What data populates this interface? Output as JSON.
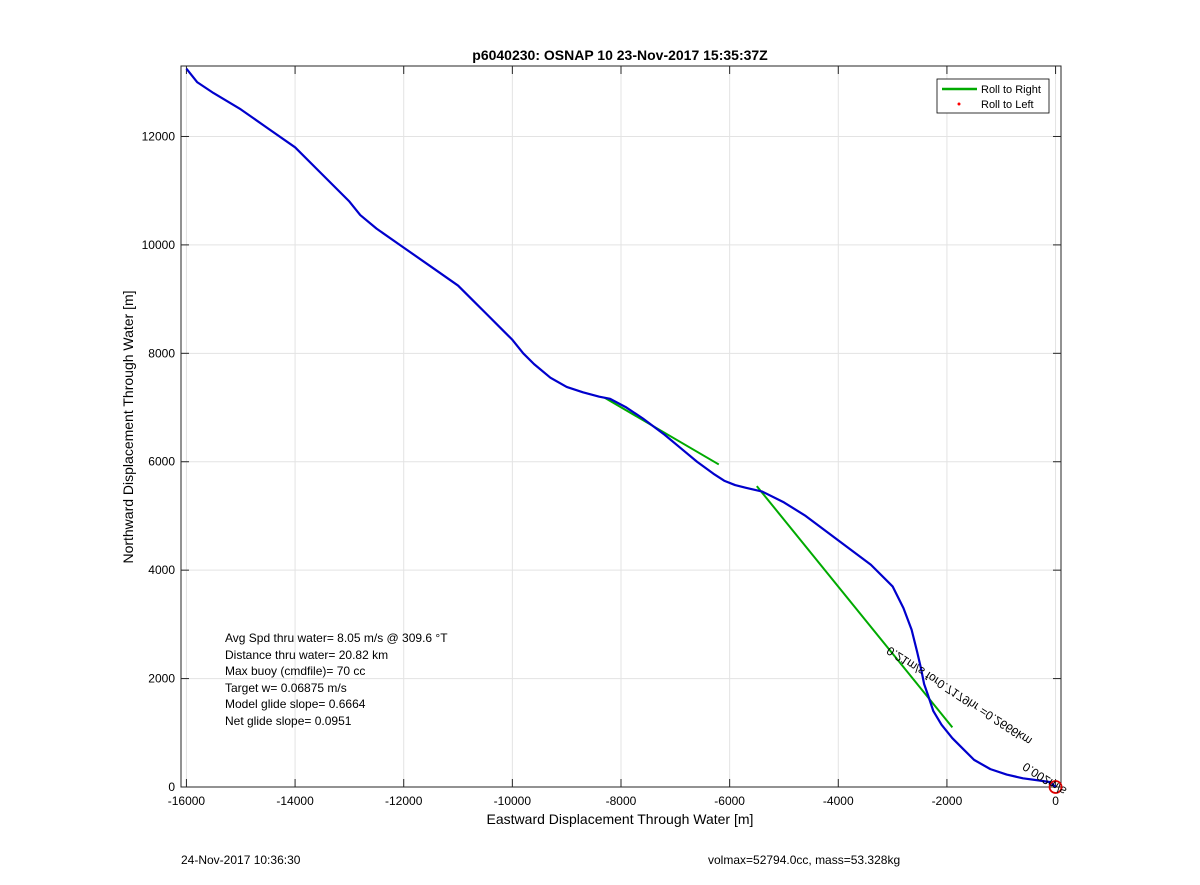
{
  "chart_data": {
    "type": "line",
    "title": "p6040230: OSNAP 10 23-Nov-2017 15:35:37Z",
    "xlabel": "Eastward Displacement Through Water [m]",
    "ylabel": "Northward Displacement Through Water [m]",
    "xlim": [
      -16100,
      100
    ],
    "ylim": [
      0,
      13300
    ],
    "xticks": [
      -16000,
      -14000,
      -12000,
      -10000,
      -8000,
      -6000,
      -4000,
      -2000,
      0
    ],
    "yticks": [
      0,
      2000,
      4000,
      6000,
      8000,
      10000,
      12000
    ],
    "xtick_labels": [
      "-16000",
      "-14000",
      "-12000",
      "-10000",
      "-8000",
      "-6000",
      "-4000",
      "-2000",
      "0"
    ],
    "ytick_labels": [
      "0",
      "2000",
      "4000",
      "6000",
      "8000",
      "10000",
      "12000"
    ],
    "grid": true,
    "legend_position": "top-right",
    "legend": [
      {
        "label": "Roll to Right",
        "color": "#00aa00",
        "marker": "line"
      },
      {
        "label": "Roll to Left",
        "color": "#ff0000",
        "marker": "dot"
      }
    ],
    "track": {
      "color": "#0000cc",
      "x": [
        -16000,
        -15800,
        -15500,
        -15000,
        -14500,
        -14000,
        -13600,
        -13300,
        -13000,
        -12800,
        -12500,
        -12000,
        -11500,
        -11000,
        -10700,
        -10500,
        -10200,
        -10000,
        -9800,
        -9600,
        -9300,
        -9000,
        -8700,
        -8400,
        -8200,
        -7900,
        -7600,
        -7200,
        -6900,
        -6600,
        -6300,
        -6100,
        -5900,
        -5700,
        -5400,
        -5000,
        -4600,
        -4200,
        -3800,
        -3400,
        -3000,
        -2800,
        -2650,
        -2550,
        -2480,
        -2420,
        -2350,
        -2250,
        -2100,
        -1900,
        -1700,
        -1500,
        -1200,
        -900,
        -600,
        -300,
        -100,
        0
      ],
      "y": [
        13250,
        13000,
        12800,
        12500,
        12150,
        11800,
        11400,
        11100,
        10800,
        10550,
        10300,
        9950,
        9600,
        9250,
        8950,
        8750,
        8450,
        8250,
        8000,
        7800,
        7550,
        7380,
        7280,
        7200,
        7160,
        7000,
        6800,
        6500,
        6250,
        6000,
        5780,
        5650,
        5570,
        5520,
        5450,
        5250,
        5000,
        4700,
        4400,
        4100,
        3700,
        3300,
        2900,
        2500,
        2200,
        1900,
        1700,
        1400,
        1150,
        900,
        700,
        500,
        330,
        230,
        160,
        120,
        90,
        0
      ]
    },
    "roll_right_segments": [
      {
        "x": [
          -8300,
          -6200
        ],
        "y": [
          7180,
          5950
        ]
      },
      {
        "x": [
          -5500,
          -1900
        ],
        "y": [
          5550,
          1100
        ]
      }
    ],
    "end_marker": {
      "x": 0,
      "y": 0,
      "color": "#dd0000"
    },
    "current_annotation": {
      "text": "0.21m/s for0.7179hr =0.2666km",
      "overlap_text": "0.002m/s",
      "x": -3000,
      "y": 2600
    },
    "annotation_box": [
      "Avg Spd thru water=  8.05 m/s @ 309.6 °T",
      "Distance thru water= 20.82 km",
      "Max buoy (cmdfile)= 70 cc",
      "Target w= 0.06875 m/s",
      "Model glide slope= 0.6664",
      "Net glide slope= 0.0951"
    ]
  },
  "footer": {
    "left": "24-Nov-2017 10:36:30",
    "right": "volmax=52794.0cc, mass=53.328kg"
  }
}
